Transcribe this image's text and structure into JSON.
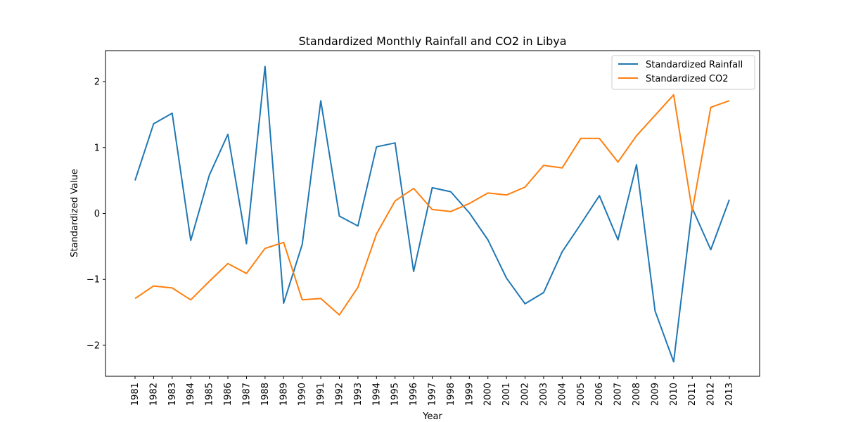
{
  "chart_data": {
    "type": "line",
    "title": "Standardized Monthly Rainfall and CO2 in Libya",
    "xlabel": "Year",
    "ylabel": "Standardized Value",
    "x": [
      "1981",
      "1982",
      "1983",
      "1984",
      "1985",
      "1986",
      "1987",
      "1988",
      "1989",
      "1990",
      "1991",
      "1992",
      "1993",
      "1994",
      "1995",
      "1996",
      "1997",
      "1998",
      "1999",
      "2000",
      "2001",
      "2002",
      "2003",
      "2004",
      "2005",
      "2006",
      "2007",
      "2008",
      "2009",
      "2010",
      "2011",
      "2012",
      "2013"
    ],
    "yticks": [
      "2",
      "1",
      "0",
      "−1",
      "−2"
    ],
    "ytick_values": [
      2,
      1,
      0,
      -1,
      -2
    ],
    "ylim": [
      -2.47,
      2.47
    ],
    "grid": false,
    "legend_position": "top-right",
    "series": [
      {
        "name": "Standardized Rainfall",
        "color": "#1f77b4",
        "values": [
          0.5,
          1.36,
          1.52,
          -0.41,
          0.58,
          1.2,
          -0.46,
          2.23,
          -1.36,
          -0.47,
          1.71,
          -0.04,
          -0.19,
          1.01,
          1.07,
          -0.88,
          0.39,
          0.33,
          0.01,
          -0.4,
          -0.98,
          -1.37,
          -1.2,
          -0.58,
          -0.16,
          0.27,
          -0.4,
          0.74,
          -1.48,
          -2.25,
          0.08,
          -0.55,
          0.21
        ]
      },
      {
        "name": "Standardized CO2",
        "color": "#ff7f0e",
        "values": [
          -1.29,
          -1.1,
          -1.13,
          -1.31,
          -1.03,
          -0.76,
          -0.91,
          -0.53,
          -0.44,
          -1.31,
          -1.29,
          -1.54,
          -1.12,
          -0.31,
          0.19,
          0.38,
          0.06,
          0.03,
          0.15,
          0.31,
          0.28,
          0.4,
          0.73,
          0.69,
          1.14,
          1.14,
          0.78,
          1.18,
          1.49,
          1.8,
          0.04,
          1.61,
          1.71
        ]
      }
    ]
  }
}
